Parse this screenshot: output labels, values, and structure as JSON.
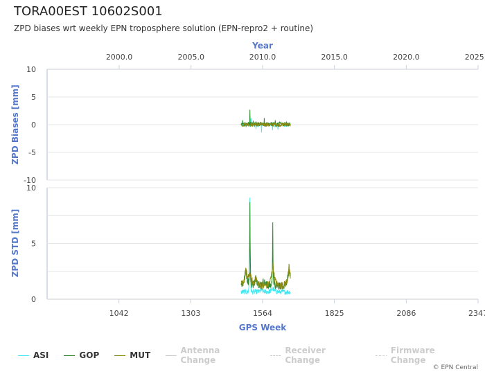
{
  "header": {
    "title": "TORA00EST 10602S001",
    "subtitle": "ZPD biases wrt weekly EPN troposphere solution (EPN-repro2 + routine)"
  },
  "credit": "© EPN Central",
  "colors": {
    "ASI": "#40e8f0",
    "GOP": "#2e8b2e",
    "MUT": "#8a8a10",
    "axis_title": "#5577cc",
    "event_lines": "#cccccc"
  },
  "legend": [
    {
      "label": "ASI",
      "color": "#40e8f0",
      "style": "solid",
      "dimmed": false
    },
    {
      "label": "GOP",
      "color": "#2e8b2e",
      "style": "solid",
      "dimmed": false
    },
    {
      "label": "MUT",
      "color": "#8a8a10",
      "style": "solid",
      "dimmed": false
    },
    {
      "label": "Antenna Change",
      "color": "#cccccc",
      "style": "solid",
      "dimmed": true
    },
    {
      "label": "Receiver Change",
      "color": "#cccccc",
      "style": "dashed",
      "dimmed": true
    },
    {
      "label": "Firmware Change",
      "color": "#cccccc",
      "style": "dotted",
      "dimmed": true
    }
  ],
  "chart_data": [
    {
      "type": "line",
      "ylabel": "ZPD Biases [mm]",
      "ylim": [
        -10,
        10
      ],
      "yticks": [
        "10",
        "5",
        "0",
        "-5",
        "-10"
      ],
      "xlim": [
        781,
        2347
      ],
      "top_axis": {
        "label": "Year",
        "ticks": [
          "2000.0",
          "2005.0",
          "2010.0",
          "2015.0",
          "2020.0",
          "2025.0"
        ],
        "tick_weeks": [
          1043,
          1304,
          1564,
          1825,
          2086,
          2347
        ]
      },
      "series": [
        {
          "name": "ASI",
          "x_range": [
            1486,
            1665
          ],
          "baseline": 0.0,
          "spikes": [
            [
              1522,
              1.2
            ],
            [
              1540,
              -0.8
            ],
            [
              1560,
              -1.4
            ],
            [
              1600,
              -1.0
            ],
            [
              1620,
              -0.9
            ]
          ]
        },
        {
          "name": "GOP",
          "x_range": [
            1486,
            1665
          ],
          "baseline": 0.1,
          "spikes": [
            [
              1492,
              0.8
            ],
            [
              1518,
              2.7
            ],
            [
              1530,
              0.6
            ],
            [
              1570,
              1.2
            ],
            [
              1610,
              0.8
            ]
          ]
        },
        {
          "name": "MUT",
          "x_range": [
            1486,
            1665
          ],
          "baseline": 0.0,
          "spikes": [
            [
              1500,
              0.5
            ],
            [
              1540,
              0.6
            ],
            [
              1580,
              0.5
            ],
            [
              1650,
              0.4
            ]
          ]
        }
      ]
    },
    {
      "type": "line",
      "ylabel": "ZPD STD [mm]",
      "xlabel": "GPS Week",
      "ylim": [
        0,
        10
      ],
      "yticks": [
        "10",
        "5",
        "0"
      ],
      "xlim": [
        781,
        2347
      ],
      "xticks": [
        "1042",
        "1303",
        "1564",
        "1825",
        "2086",
        "2347"
      ],
      "xtick_values": [
        1042,
        1303,
        1564,
        1825,
        2086,
        2347
      ],
      "series": [
        {
          "name": "ASI",
          "x_range": [
            1486,
            1665
          ],
          "baseline": 0.65,
          "peaks": [
            [
              1518,
              9.2
            ],
            [
              1601,
              1.1
            ],
            [
              1560,
              0.9
            ]
          ]
        },
        {
          "name": "GOP",
          "x_range": [
            1486,
            1665
          ],
          "baseline": 1.2,
          "peaks": [
            [
              1503,
              3.1
            ],
            [
              1518,
              8.8
            ],
            [
              1540,
              2.2
            ],
            [
              1568,
              1.8
            ],
            [
              1601,
              7.1
            ],
            [
              1660,
              3.3
            ]
          ]
        },
        {
          "name": "MUT",
          "x_range": [
            1486,
            1665
          ],
          "baseline": 1.2,
          "peaks": [
            [
              1503,
              3.0
            ],
            [
              1518,
              2.5
            ],
            [
              1540,
              2.1
            ],
            [
              1601,
              3.8
            ],
            [
              1660,
              3.2
            ]
          ]
        }
      ]
    }
  ]
}
